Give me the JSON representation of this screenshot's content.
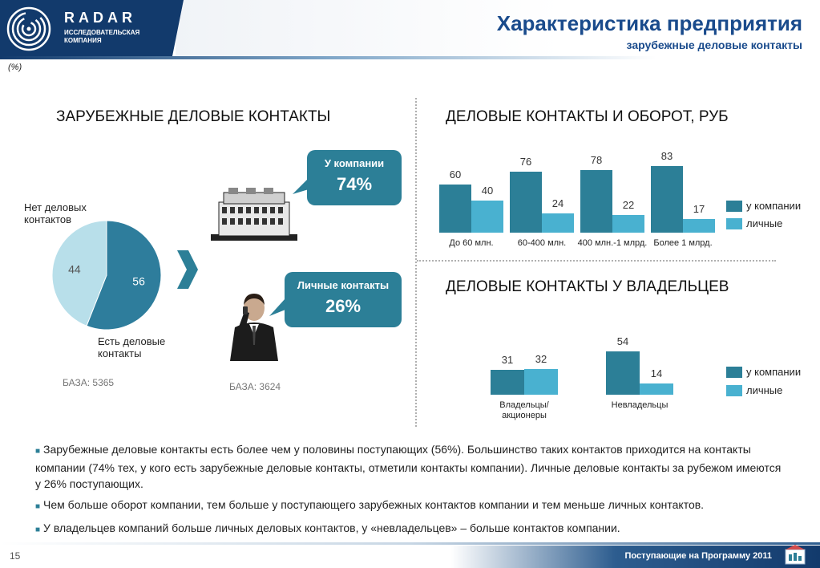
{
  "header": {
    "logo_name": "RADAR",
    "logo_sub_1": "ИССЛЕДОВАТЕЛЬСКАЯ",
    "logo_sub_2": "КОМПАНИЯ",
    "title": "Характеристика предприятия",
    "subtitle": "зарубежные деловые контакты"
  },
  "percent_note": "(%)",
  "left_section": {
    "title": "ЗАРУБЕЖНЫЕ ДЕЛОВЫЕ КОНТАКТЫ",
    "label_no_1": "Нет деловых",
    "label_no_2": "контактов",
    "label_yes_1": "Есть деловые",
    "label_yes_2": "контакты",
    "base": "БАЗА: 5365",
    "base2": "БАЗА: 3624",
    "bubble_company_label": "У компании",
    "bubble_company_value": "74%",
    "bubble_personal_label": "Личные контакты",
    "bubble_personal_value": "26%"
  },
  "right_top": {
    "title": "ДЕЛОВЫЕ КОНТАКТЫ И ОБОРОТ, РУБ"
  },
  "right_bottom": {
    "title": "ДЕЛОВЫЕ КОНТАКТЫ У ВЛАДЕЛЬЦЕВ"
  },
  "legend": {
    "company": "у компании",
    "personal": "личные"
  },
  "colors": {
    "company": "#2c7f97",
    "personal": "#49b1d0",
    "pie_yes": "#2e7d9c",
    "pie_no": "#b8dfea",
    "accent": "#1a4b8c"
  },
  "chart_data": [
    {
      "type": "pie",
      "title": "ЗАРУБЕЖНЫЕ ДЕЛОВЫЕ КОНТАКТЫ",
      "labels": [
        "Есть деловые контакты",
        "Нет деловых контактов"
      ],
      "values": [
        56,
        44
      ]
    },
    {
      "type": "bar",
      "title": "ДЕЛОВЫЕ КОНТАКТЫ И ОБОРОТ, РУБ",
      "categories": [
        "До 60 млн.",
        "60-400 млн.",
        "400 млн.-1 млрд.",
        "Более 1 млрд."
      ],
      "series": [
        {
          "name": "у компании",
          "values": [
            60,
            76,
            78,
            83
          ]
        },
        {
          "name": "личные",
          "values": [
            40,
            24,
            22,
            17
          ]
        }
      ],
      "ylim": [
        0,
        100
      ]
    },
    {
      "type": "bar",
      "title": "ДЕЛОВЫЕ КОНТАКТЫ У ВЛАДЕЛЬЦЕВ",
      "categories": [
        "Владельцы/ акционеры",
        "Невладельцы"
      ],
      "series": [
        {
          "name": "у компании",
          "values": [
            31,
            54
          ]
        },
        {
          "name": "личные",
          "values": [
            32,
            14
          ]
        }
      ],
      "ylim": [
        0,
        100
      ]
    }
  ],
  "bullets": [
    "Зарубежные деловые контакты есть более чем у половины поступающих (56%). Большинство таких контактов приходится на контакты компании (74%  тех, у кого есть зарубежные деловые контакты, отметили контакты компании). Личные деловые контакты за рубежом имеются у 26% поступающих.",
    "Чем больше оборот компании, тем больше у поступающего зарубежных контактов компании и тем меньше личных контактов.",
    "У владельцев компаний больше личных деловых контактов, у «невладельцев» – больше контактов компании."
  ],
  "footer": {
    "page_number": "15",
    "text": "Поступающие на Программу 2011"
  }
}
